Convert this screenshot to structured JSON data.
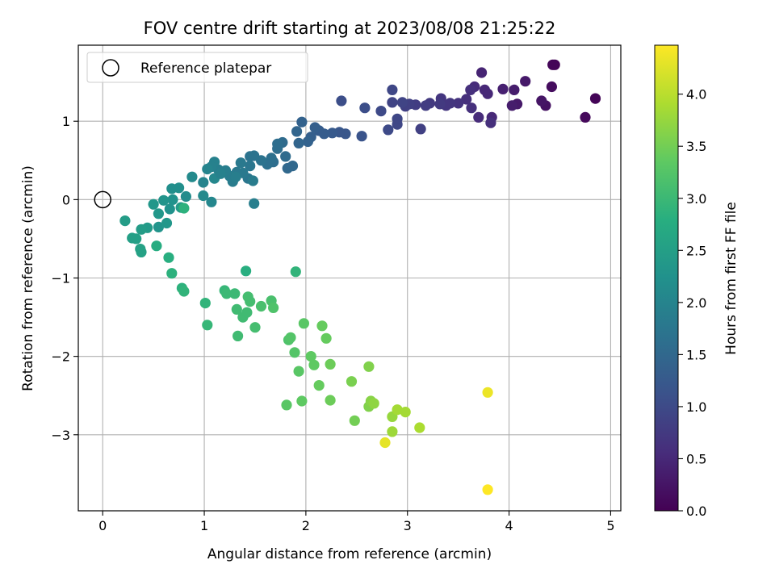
{
  "chart_data": {
    "type": "scatter",
    "title": "FOV centre drift starting at 2023/08/08 21:25:22",
    "xlabel": "Angular distance from reference (arcmin)",
    "ylabel": "Rotation from reference (arcmin)",
    "xlim": [
      -0.24,
      5.1
    ],
    "ylim": [
      -3.97,
      1.97
    ],
    "xticks": [
      0,
      1,
      2,
      3,
      4,
      5
    ],
    "yticks": [
      -3,
      -2,
      -1,
      0,
      1
    ],
    "grid": true,
    "legend": {
      "placement": "top-left",
      "entries": [
        "Reference platepar"
      ]
    },
    "reference_point": {
      "x": 0,
      "y": 0,
      "label": "Reference platepar"
    },
    "colorbar": {
      "label": "Hours from first FF file",
      "range": [
        0,
        4.47
      ],
      "ticks": [
        "0.0",
        "0.5",
        "1.0",
        "1.5",
        "2.0",
        "2.5",
        "3.0",
        "3.5",
        "4.0"
      ],
      "colormap": "viridis"
    },
    "points": [
      [
        4.45,
        1.72,
        0.05
      ],
      [
        4.43,
        1.72,
        0.06
      ],
      [
        4.85,
        1.29,
        0.05
      ],
      [
        4.75,
        1.05,
        0.1
      ],
      [
        4.42,
        1.44,
        0.15
      ],
      [
        4.36,
        1.2,
        0.2
      ],
      [
        4.32,
        1.26,
        0.25
      ],
      [
        4.16,
        1.51,
        0.3
      ],
      [
        4.08,
        1.22,
        0.3
      ],
      [
        4.03,
        1.2,
        0.35
      ],
      [
        4.05,
        1.4,
        0.35
      ],
      [
        3.94,
        1.41,
        0.4
      ],
      [
        3.73,
        1.62,
        0.45
      ],
      [
        3.79,
        1.35,
        0.5
      ],
      [
        3.76,
        1.4,
        0.5
      ],
      [
        3.66,
        1.44,
        0.55
      ],
      [
        3.62,
        1.4,
        0.6
      ],
      [
        3.58,
        1.28,
        0.6
      ],
      [
        3.5,
        1.23,
        0.65
      ],
      [
        3.42,
        1.23,
        0.7
      ],
      [
        3.38,
        1.2,
        0.7
      ],
      [
        3.33,
        1.29,
        0.7
      ],
      [
        3.32,
        1.22,
        0.75
      ],
      [
        3.22,
        1.23,
        0.75
      ],
      [
        3.18,
        1.2,
        0.8
      ],
      [
        3.08,
        1.21,
        0.8
      ],
      [
        3.02,
        1.22,
        0.85
      ],
      [
        2.98,
        1.19,
        0.85
      ],
      [
        2.95,
        1.24,
        0.9
      ],
      [
        2.85,
        1.24,
        0.9
      ],
      [
        2.85,
        1.4,
        0.95
      ],
      [
        2.74,
        1.13,
        1.0
      ],
      [
        2.58,
        1.17,
        1.05
      ],
      [
        2.35,
        1.26,
        1.05
      ],
      [
        3.13,
        0.9,
        0.85
      ],
      [
        3.83,
        1.05,
        0.5
      ],
      [
        3.7,
        1.05,
        0.55
      ],
      [
        3.82,
        0.98,
        0.6
      ],
      [
        3.63,
        1.17,
        0.6
      ],
      [
        2.9,
        0.96,
        0.95
      ],
      [
        2.81,
        0.89,
        1.0
      ],
      [
        2.9,
        1.03,
        0.95
      ],
      [
        2.55,
        0.81,
        1.15
      ],
      [
        2.39,
        0.84,
        1.2
      ],
      [
        2.33,
        0.86,
        1.2
      ],
      [
        2.26,
        0.85,
        1.25
      ],
      [
        2.18,
        0.84,
        1.3
      ],
      [
        2.13,
        0.88,
        1.3
      ],
      [
        2.09,
        0.92,
        1.35
      ],
      [
        2.05,
        0.8,
        1.35
      ],
      [
        1.96,
        0.99,
        1.4
      ],
      [
        2.02,
        0.74,
        1.4
      ],
      [
        1.93,
        0.72,
        1.45
      ],
      [
        1.91,
        0.87,
        1.45
      ],
      [
        1.82,
        0.4,
        1.5
      ],
      [
        1.87,
        0.43,
        1.5
      ],
      [
        1.8,
        0.55,
        1.55
      ],
      [
        1.77,
        0.73,
        1.55
      ],
      [
        1.72,
        0.65,
        1.6
      ],
      [
        1.72,
        0.71,
        1.6
      ],
      [
        1.68,
        0.48,
        1.6
      ],
      [
        1.66,
        0.53,
        1.65
      ],
      [
        1.62,
        0.45,
        1.65
      ],
      [
        1.56,
        0.5,
        1.7
      ],
      [
        1.49,
        0.56,
        1.7
      ],
      [
        1.45,
        0.55,
        1.7
      ],
      [
        1.45,
        0.43,
        1.75
      ],
      [
        1.43,
        0.27,
        1.75
      ],
      [
        1.38,
        0.34,
        1.8
      ],
      [
        1.36,
        0.47,
        1.8
      ],
      [
        1.32,
        0.35,
        1.8
      ],
      [
        1.28,
        0.23,
        1.85
      ],
      [
        1.25,
        0.3,
        1.85
      ],
      [
        1.21,
        0.37,
        1.9
      ],
      [
        1.14,
        0.38,
        1.9
      ],
      [
        1.1,
        0.48,
        1.95
      ],
      [
        1.07,
        0.42,
        1.95
      ],
      [
        1.03,
        0.39,
        2.0
      ],
      [
        0.99,
        0.22,
        2.0
      ],
      [
        1.1,
        0.27,
        2.05
      ],
      [
        1.07,
        -0.03,
        2.05
      ],
      [
        0.99,
        0.05,
        2.1
      ],
      [
        0.88,
        0.29,
        2.1
      ],
      [
        0.82,
        0.04,
        2.15
      ],
      [
        0.75,
        0.15,
        2.2
      ],
      [
        0.68,
        0.14,
        2.2
      ],
      [
        0.69,
        0.0,
        2.25
      ],
      [
        0.66,
        -0.12,
        2.25
      ],
      [
        0.6,
        -0.01,
        2.3
      ],
      [
        0.55,
        -0.18,
        2.35
      ],
      [
        0.5,
        -0.06,
        2.35
      ],
      [
        0.44,
        -0.36,
        2.4
      ],
      [
        0.38,
        -0.38,
        2.45
      ],
      [
        0.33,
        -0.5,
        2.5
      ],
      [
        0.22,
        -0.27,
        2.45
      ],
      [
        0.29,
        -0.49,
        2.5
      ],
      [
        0.38,
        -0.67,
        2.55
      ],
      [
        0.37,
        -0.63,
        2.55
      ],
      [
        0.55,
        -0.35,
        2.3
      ],
      [
        0.63,
        -0.3,
        2.35
      ],
      [
        1.31,
        0.29,
        1.9
      ],
      [
        1.48,
        0.24,
        1.85
      ],
      [
        1.49,
        -0.05,
        1.9
      ],
      [
        1.16,
        0.33,
        1.95
      ],
      [
        0.77,
        -0.1,
        2.4
      ],
      [
        0.8,
        -0.11,
        2.85
      ],
      [
        1.41,
        -0.91,
        2.8
      ],
      [
        1.9,
        -0.92,
        2.9
      ],
      [
        0.53,
        -0.59,
        2.75
      ],
      [
        0.65,
        -0.74,
        2.8
      ],
      [
        0.68,
        -0.94,
        2.85
      ],
      [
        0.78,
        -1.13,
        2.85
      ],
      [
        0.8,
        -1.17,
        2.9
      ],
      [
        1.01,
        -1.32,
        2.9
      ],
      [
        1.03,
        -1.6,
        2.95
      ],
      [
        1.2,
        -1.16,
        2.95
      ],
      [
        1.22,
        -1.2,
        3.0
      ],
      [
        1.3,
        -1.2,
        3.0
      ],
      [
        1.32,
        -1.4,
        3.05
      ],
      [
        1.38,
        -1.5,
        3.05
      ],
      [
        1.42,
        -1.44,
        3.05
      ],
      [
        1.43,
        -1.24,
        3.1
      ],
      [
        1.45,
        -1.3,
        3.1
      ],
      [
        1.5,
        -1.63,
        3.1
      ],
      [
        1.56,
        -1.36,
        3.15
      ],
      [
        1.66,
        -1.29,
        3.15
      ],
      [
        1.68,
        -1.38,
        3.2
      ],
      [
        1.33,
        -1.74,
        3.05
      ],
      [
        1.83,
        -1.79,
        3.2
      ],
      [
        1.85,
        -1.76,
        3.25
      ],
      [
        1.89,
        -1.95,
        3.25
      ],
      [
        1.93,
        -2.19,
        3.3
      ],
      [
        1.98,
        -1.58,
        3.3
      ],
      [
        2.05,
        -2.0,
        3.35
      ],
      [
        2.08,
        -2.11,
        3.35
      ],
      [
        2.13,
        -2.37,
        3.4
      ],
      [
        2.16,
        -1.61,
        3.4
      ],
      [
        2.2,
        -1.77,
        3.4
      ],
      [
        2.24,
        -2.1,
        3.45
      ],
      [
        2.24,
        -2.56,
        3.45
      ],
      [
        1.81,
        -2.62,
        3.3
      ],
      [
        1.96,
        -2.57,
        3.35
      ],
      [
        2.48,
        -2.82,
        3.5
      ],
      [
        2.45,
        -2.32,
        3.55
      ],
      [
        2.62,
        -2.13,
        3.6
      ],
      [
        2.62,
        -2.64,
        3.6
      ],
      [
        2.64,
        -2.57,
        3.65
      ],
      [
        2.67,
        -2.6,
        3.7
      ],
      [
        2.85,
        -2.77,
        3.75
      ],
      [
        2.85,
        -2.96,
        3.8
      ],
      [
        2.9,
        -2.68,
        3.85
      ],
      [
        2.98,
        -2.71,
        3.85
      ],
      [
        3.12,
        -2.91,
        3.9
      ],
      [
        2.78,
        -3.1,
        4.3
      ],
      [
        3.79,
        -2.46,
        4.35
      ],
      [
        3.79,
        -3.7,
        4.47
      ]
    ]
  }
}
